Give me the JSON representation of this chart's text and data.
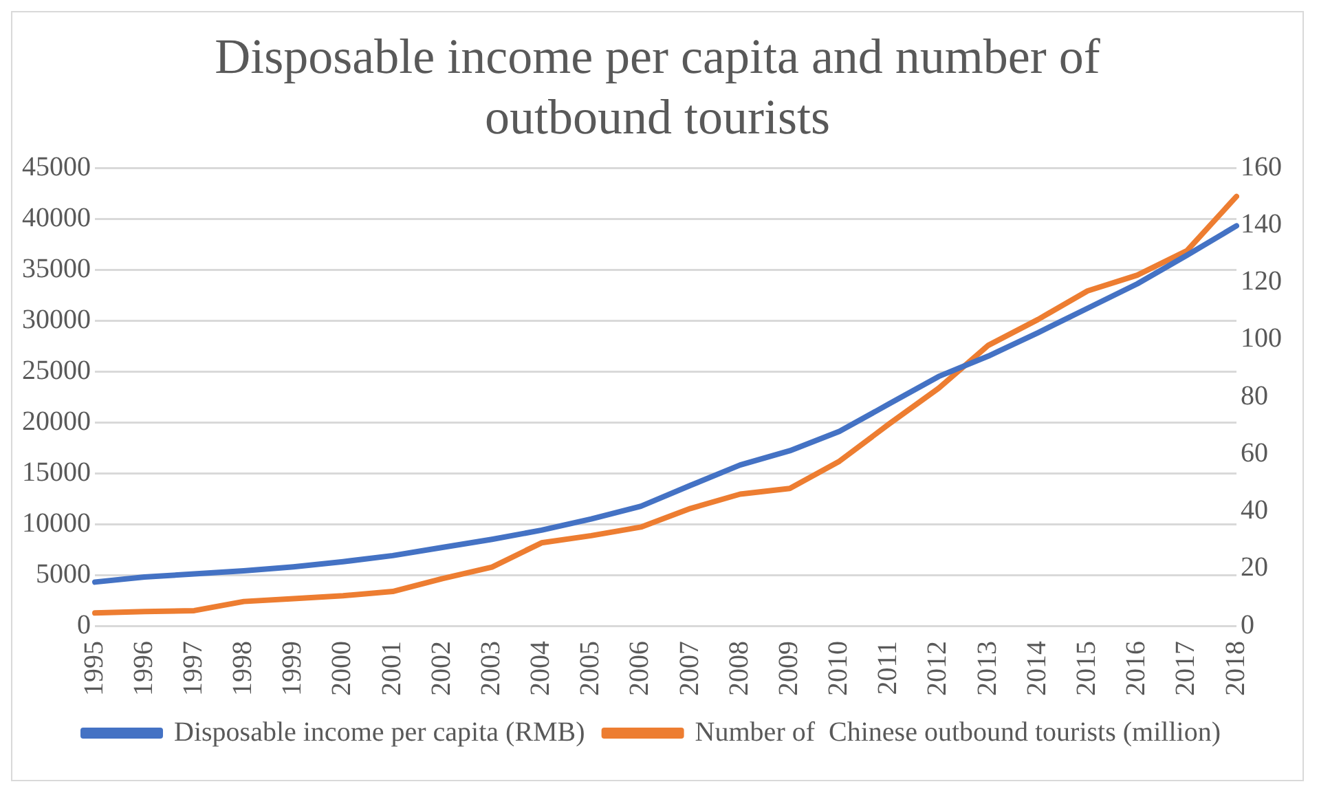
{
  "chart_data": {
    "type": "line",
    "title": "Disposable income per capita and number of outbound tourists",
    "categories": [
      "1995",
      "1996",
      "1997",
      "1998",
      "1999",
      "2000",
      "2001",
      "2002",
      "2003",
      "2004",
      "2005",
      "2006",
      "2007",
      "2008",
      "2009",
      "2010",
      "2011",
      "2012",
      "2013",
      "2014",
      "2015",
      "2016",
      "2017",
      "2018"
    ],
    "series": [
      {
        "name": "Disposable income per capita (RMB)",
        "color": "#4472c4",
        "values": [
          4300,
          4800,
          5100,
          5400,
          5800,
          6300,
          6900,
          7700,
          8500,
          9400,
          10500,
          11750,
          13800,
          15800,
          17200,
          19100,
          21800,
          24500,
          26500,
          28800,
          31200,
          33600,
          36400,
          39300
        ]
      },
      {
        "name": "Number of  Chinese outbound tourists (million)",
        "color": "#ed7d31",
        "axis": "y2",
        "values": [
          4.5,
          5,
          5.3,
          8.5,
          9.5,
          10.5,
          12,
          16.5,
          20.5,
          29,
          31.5,
          34.5,
          41,
          46,
          48,
          57.5,
          70.5,
          83,
          98,
          107,
          117,
          122.5,
          131,
          150
        ]
      }
    ],
    "ylim": [
      0,
      45000
    ],
    "yticks": [
      0,
      5000,
      10000,
      15000,
      20000,
      25000,
      30000,
      35000,
      40000,
      45000
    ],
    "y2lim": [
      0,
      160
    ],
    "y2ticks": [
      0,
      20,
      40,
      60,
      80,
      100,
      120,
      140,
      160
    ],
    "grid": "y",
    "legend": "bottom",
    "marker": "none",
    "line_style": "solid"
  }
}
